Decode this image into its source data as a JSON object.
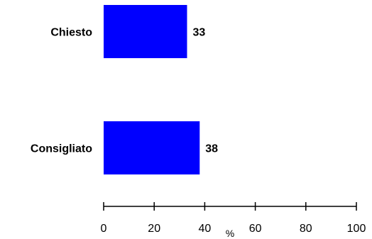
{
  "chart_data": {
    "type": "bar",
    "orientation": "horizontal",
    "categories": [
      "Chiesto",
      "Consigliato"
    ],
    "values": [
      33,
      38
    ],
    "value_labels": [
      "33",
      "38"
    ],
    "xlabel": "%",
    "xlim": [
      0,
      100
    ],
    "ticks": [
      0,
      20,
      40,
      60,
      80,
      100
    ],
    "tick_labels": [
      "0",
      "20",
      "40",
      "60",
      "80",
      "100"
    ],
    "bar_color": "#0000ff",
    "grid": false,
    "legend": "none"
  }
}
